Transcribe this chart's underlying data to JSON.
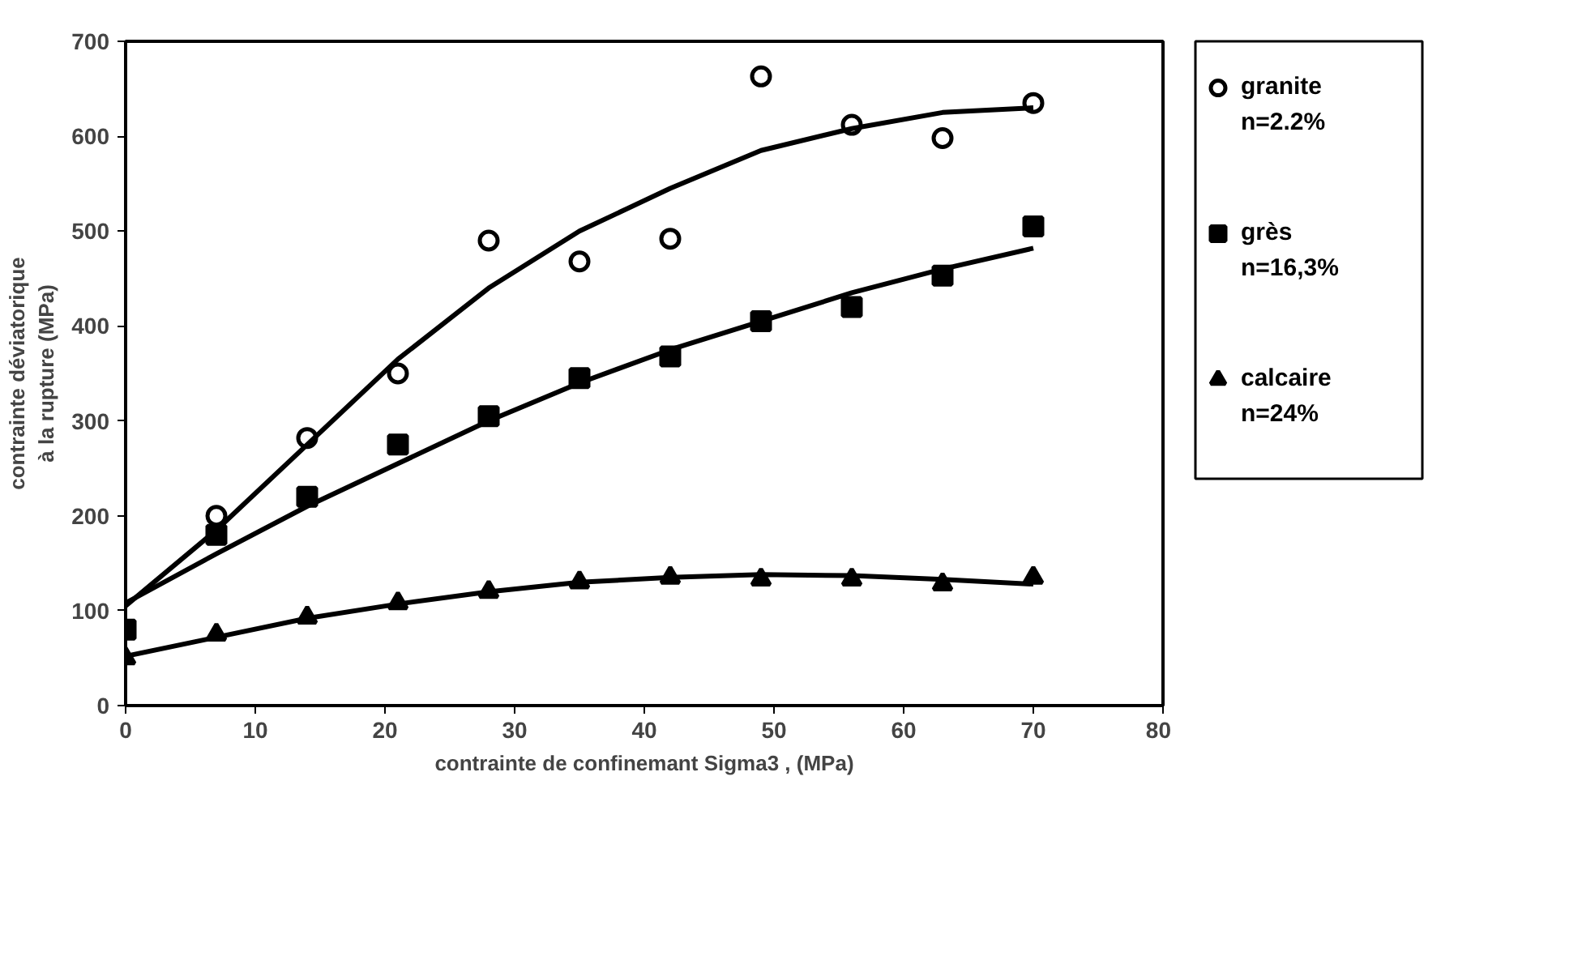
{
  "chart_data": {
    "type": "scatter",
    "xlabel": "contrainte de confinemant Sigma3 , (MPa)",
    "ylabel": "contrainte déviatorique\nà la rupture (MPa)",
    "x": [
      0,
      7,
      14,
      21,
      28,
      35,
      42,
      49,
      56,
      63,
      70
    ],
    "xlim": [
      0,
      80
    ],
    "xticks": [
      0,
      10,
      20,
      30,
      40,
      50,
      60,
      70,
      80
    ],
    "ylim": [
      0,
      700
    ],
    "yticks": [
      0,
      100,
      200,
      300,
      400,
      500,
      600,
      700
    ],
    "grid": false,
    "legend": "right",
    "series": [
      {
        "name": "granite\nn=2.2%",
        "color": "#000000",
        "marker": "circle",
        "values": [
          null,
          200,
          282,
          350,
          490,
          468,
          492,
          663,
          612,
          598,
          635
        ]
      },
      {
        "name": "grès\nn=16,3%",
        "color": "#000000",
        "marker": "square",
        "values": [
          80,
          180,
          220,
          275,
          305,
          345,
          368,
          405,
          420,
          453,
          505
        ]
      },
      {
        "name": "calcaire\nn=24%",
        "color": "#000000",
        "marker": "triangle",
        "values": [
          50,
          75,
          93,
          108,
          120,
          130,
          135,
          133,
          133,
          128,
          135
        ]
      },
      {
        "type": "line",
        "color": "#000000",
        "x": [
          0,
          7,
          14,
          21,
          28,
          35,
          42,
          49,
          56,
          63,
          70
        ],
        "values": [
          105,
          185,
          275,
          365,
          440,
          500,
          545,
          585,
          608,
          625,
          630
        ]
      },
      {
        "type": "line",
        "color": "#000000",
        "x": [
          0,
          7,
          14,
          21,
          28,
          35,
          42,
          49,
          56,
          63,
          70
        ],
        "values": [
          108,
          160,
          210,
          255,
          300,
          340,
          375,
          405,
          435,
          460,
          482
        ]
      },
      {
        "type": "line",
        "color": "#000000",
        "x": [
          0,
          7,
          14,
          21,
          28,
          35,
          42,
          49,
          56,
          63,
          70
        ],
        "values": [
          52,
          72,
          92,
          107,
          120,
          130,
          135,
          138,
          137,
          133,
          128
        ]
      }
    ]
  }
}
